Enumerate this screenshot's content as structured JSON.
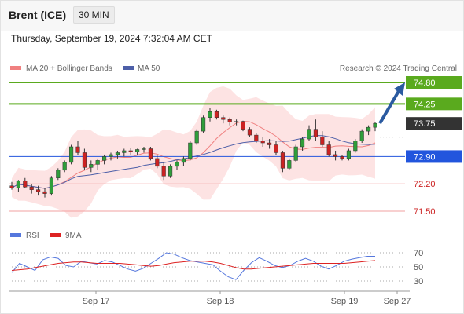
{
  "header": {
    "instrument": "Brent (ICE)",
    "interval": "30 MIN",
    "datetime": "Thursday, September 19, 2024 7:32:04 AM CET"
  },
  "legend": {
    "ma20": "MA 20 + Bollinger Bands",
    "ma50": "MA 50",
    "rsi": "RSI",
    "ma9": "9MA",
    "credit": "Research © 2024 Trading Central"
  },
  "colors": {
    "resistance": "#5aaa1e",
    "support_line": "#f2a0a0",
    "support_text": "#cc2222",
    "pivot": "#2255dd",
    "last_price_box": "#333333",
    "bollinger_fill": "#fde3e3",
    "ma20": "#f08080",
    "ma50": "#4d5fa8",
    "rsi": "#5577dd",
    "rsi_ma": "#dd2222",
    "up_candle": "#2f9e3a",
    "down_candle": "#cc2222",
    "arrow": "#2a5aa0"
  },
  "chart_data": {
    "type": "candlestick",
    "title": "Brent (ICE) 30 MIN",
    "x_labels": [
      "Sep 17",
      "Sep 18",
      "Sep 19",
      "Sep 27"
    ],
    "ylim": [
      71.3,
      74.9
    ],
    "levels": [
      {
        "value": 74.8,
        "label": "74.80",
        "kind": "resistance"
      },
      {
        "value": 74.25,
        "label": "74.25",
        "kind": "resistance"
      },
      {
        "value": 73.75,
        "label": "73.75",
        "kind": "last"
      },
      {
        "value": 72.9,
        "label": "72.90",
        "kind": "pivot"
      },
      {
        "value": 72.2,
        "label": "72.20",
        "kind": "support"
      },
      {
        "value": 71.5,
        "label": "71.50",
        "kind": "support"
      }
    ],
    "projection": {
      "from": 73.75,
      "to": 74.8
    },
    "candles": [
      [
        72.15,
        72.25,
        72.05,
        72.1
      ],
      [
        72.1,
        72.3,
        72.0,
        72.28
      ],
      [
        72.28,
        72.35,
        72.1,
        72.12
      ],
      [
        72.12,
        72.2,
        71.95,
        72.05
      ],
      [
        72.05,
        72.15,
        71.9,
        72.0
      ],
      [
        72.0,
        72.1,
        71.85,
        71.95
      ],
      [
        71.95,
        72.4,
        71.9,
        72.35
      ],
      [
        72.35,
        72.6,
        72.3,
        72.55
      ],
      [
        72.55,
        72.8,
        72.5,
        72.75
      ],
      [
        72.75,
        73.2,
        72.7,
        73.15
      ],
      [
        73.15,
        73.3,
        72.95,
        73.0
      ],
      [
        73.0,
        73.1,
        72.55,
        72.62
      ],
      [
        72.62,
        72.8,
        72.5,
        72.7
      ],
      [
        72.7,
        72.85,
        72.55,
        72.8
      ],
      [
        72.8,
        72.95,
        72.7,
        72.9
      ],
      [
        72.9,
        73.0,
        72.8,
        72.95
      ],
      [
        72.95,
        73.05,
        72.85,
        73.0
      ],
      [
        73.0,
        73.1,
        72.9,
        73.05
      ],
      [
        73.05,
        73.12,
        72.95,
        73.02
      ],
      [
        73.02,
        73.1,
        72.95,
        73.08
      ],
      [
        73.08,
        73.15,
        73.0,
        73.1
      ],
      [
        73.1,
        73.15,
        72.8,
        72.85
      ],
      [
        72.85,
        72.95,
        72.6,
        72.65
      ],
      [
        72.65,
        72.75,
        72.3,
        72.4
      ],
      [
        72.4,
        72.7,
        72.35,
        72.65
      ],
      [
        72.65,
        72.8,
        72.55,
        72.75
      ],
      [
        72.75,
        72.9,
        72.65,
        72.85
      ],
      [
        72.85,
        73.3,
        72.8,
        73.25
      ],
      [
        73.25,
        73.6,
        73.2,
        73.55
      ],
      [
        73.55,
        73.95,
        73.5,
        73.9
      ],
      [
        73.9,
        74.15,
        73.8,
        74.05
      ],
      [
        74.05,
        74.1,
        73.85,
        73.9
      ],
      [
        73.9,
        73.95,
        73.75,
        73.85
      ],
      [
        73.85,
        73.9,
        73.7,
        73.78
      ],
      [
        73.78,
        73.85,
        73.7,
        73.8
      ],
      [
        73.8,
        73.82,
        73.55,
        73.6
      ],
      [
        73.6,
        73.65,
        73.4,
        73.45
      ],
      [
        73.45,
        73.5,
        73.25,
        73.3
      ],
      [
        73.3,
        73.4,
        73.15,
        73.25
      ],
      [
        73.25,
        73.35,
        73.1,
        73.2
      ],
      [
        73.2,
        73.3,
        72.95,
        73.0
      ],
      [
        73.0,
        73.05,
        72.5,
        72.6
      ],
      [
        72.6,
        72.85,
        72.55,
        72.8
      ],
      [
        72.8,
        73.2,
        72.75,
        73.15
      ],
      [
        73.15,
        73.4,
        73.05,
        73.35
      ],
      [
        73.35,
        73.7,
        73.3,
        73.6
      ],
      [
        73.6,
        73.85,
        73.3,
        73.4
      ],
      [
        73.4,
        73.55,
        73.15,
        73.2
      ],
      [
        73.2,
        73.3,
        72.9,
        72.95
      ],
      [
        72.95,
        73.05,
        72.8,
        72.9
      ],
      [
        72.9,
        72.95,
        72.8,
        72.85
      ],
      [
        72.85,
        73.1,
        72.8,
        73.05
      ],
      [
        73.05,
        73.35,
        73.0,
        73.3
      ],
      [
        73.3,
        73.6,
        73.25,
        73.55
      ],
      [
        73.55,
        73.7,
        73.45,
        73.65
      ],
      [
        73.65,
        73.78,
        73.55,
        73.75
      ]
    ],
    "rsi": {
      "ylim": [
        20,
        80
      ],
      "ticks": [
        70,
        50,
        30
      ],
      "rsi_values": [
        42,
        55,
        50,
        45,
        60,
        64,
        62,
        52,
        50,
        58,
        56,
        54,
        59,
        57,
        52,
        47,
        44,
        48,
        55,
        62,
        70,
        68,
        63,
        59,
        57,
        55,
        53,
        44,
        36,
        32,
        45,
        56,
        63,
        58,
        52,
        49,
        52,
        58,
        62,
        58,
        51,
        47,
        52,
        58,
        61,
        63,
        65,
        65
      ],
      "ma9_values": [
        45,
        46,
        47,
        49,
        51,
        53,
        55,
        56,
        57,
        57,
        56,
        55,
        55,
        55,
        55,
        54,
        53,
        52,
        51,
        52,
        54,
        56,
        57,
        58,
        58,
        58,
        57,
        55,
        52,
        49,
        47,
        47,
        48,
        49,
        50,
        51,
        52,
        53,
        54,
        55,
        55,
        55,
        55,
        55,
        56,
        57,
        58,
        59
      ]
    }
  }
}
